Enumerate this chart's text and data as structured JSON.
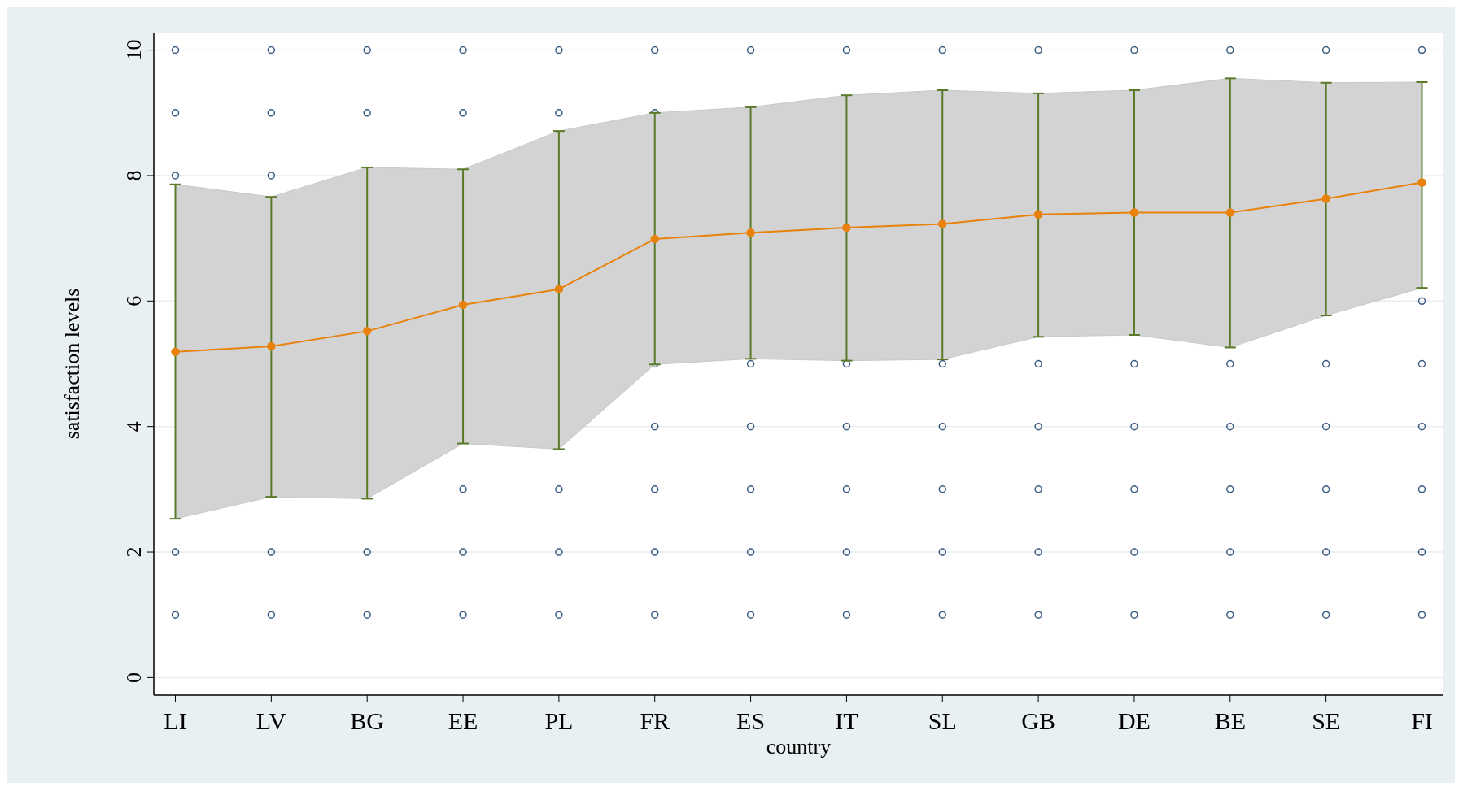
{
  "chart_data": {
    "type": "line",
    "xlabel": "country",
    "ylabel": "satisfaction levels",
    "categories": [
      "LI",
      "LV",
      "BG",
      "EE",
      "PL",
      "FR",
      "ES",
      "IT",
      "SL",
      "GB",
      "DE",
      "BE",
      "SE",
      "FI"
    ],
    "ylim": [
      -0.28,
      10.28
    ],
    "yticks": [
      0,
      2,
      4,
      6,
      8,
      10
    ],
    "grid": "y",
    "series": [
      {
        "type": "scatter",
        "color": "#3a5a80",
        "marker": "circle",
        "x": [
          "LI",
          "LI",
          "LI",
          "LI",
          "LI",
          "LV",
          "LV",
          "LV",
          "LV",
          "LV",
          "BG",
          "BG",
          "BG",
          "BG",
          "EE",
          "EE",
          "EE",
          "EE",
          "EE",
          "PL",
          "PL",
          "PL",
          "PL",
          "PL",
          "FR",
          "FR",
          "FR",
          "FR",
          "FR",
          "FR",
          "FR",
          "ES",
          "ES",
          "ES",
          "ES",
          "ES",
          "ES",
          "IT",
          "IT",
          "IT",
          "IT",
          "IT",
          "IT",
          "SL",
          "SL",
          "SL",
          "SL",
          "SL",
          "SL",
          "GB",
          "GB",
          "GB",
          "GB",
          "GB",
          "GB",
          "DE",
          "DE",
          "DE",
          "DE",
          "DE",
          "DE",
          "BE",
          "BE",
          "BE",
          "BE",
          "BE",
          "BE",
          "SE",
          "SE",
          "SE",
          "SE",
          "SE",
          "SE",
          "FI",
          "FI",
          "FI",
          "FI",
          "FI",
          "FI",
          "FI"
        ],
        "values": [
          10,
          9,
          8,
          2,
          1,
          10,
          9,
          8,
          2,
          1,
          10,
          9,
          2,
          1,
          10,
          9,
          3,
          2,
          1,
          10,
          9,
          3,
          2,
          1,
          10,
          9,
          5,
          4,
          3,
          2,
          1,
          10,
          5,
          4,
          3,
          2,
          1,
          10,
          5,
          4,
          3,
          2,
          1,
          10,
          5,
          4,
          3,
          2,
          1,
          10,
          5,
          4,
          3,
          2,
          1,
          10,
          5,
          4,
          3,
          2,
          1,
          10,
          5,
          4,
          3,
          2,
          1,
          10,
          5,
          4,
          3,
          2,
          1,
          10,
          6,
          5,
          4,
          3,
          2,
          1
        ]
      },
      {
        "color": "#e8820c",
        "marker": "circle",
        "values": [
          5.19,
          5.28,
          5.52,
          5.94,
          6.19,
          6.99,
          7.09,
          7.17,
          7.23,
          7.38,
          7.41,
          7.41,
          7.63,
          7.89
        ],
        "lower": [
          2.53,
          2.88,
          2.85,
          3.73,
          3.64,
          4.99,
          5.08,
          5.05,
          5.07,
          5.43,
          5.46,
          5.26,
          5.77,
          6.21
        ],
        "upper": [
          7.86,
          7.66,
          8.13,
          8.1,
          8.71,
          9.0,
          9.09,
          9.28,
          9.36,
          9.31,
          9.36,
          9.55,
          9.48,
          9.49
        ],
        "errors": [
          [
            2.53,
            7.86
          ],
          [
            2.88,
            7.66
          ],
          [
            2.85,
            8.13
          ],
          [
            3.73,
            8.1
          ],
          [
            3.64,
            8.71
          ],
          [
            4.99,
            9.0
          ],
          [
            5.08,
            9.09
          ],
          [
            5.05,
            9.28
          ],
          [
            5.07,
            9.36
          ],
          [
            5.43,
            9.31
          ],
          [
            5.46,
            9.36
          ],
          [
            5.26,
            9.55
          ],
          [
            5.77,
            9.48
          ],
          [
            6.21,
            9.49
          ]
        ]
      }
    ]
  }
}
